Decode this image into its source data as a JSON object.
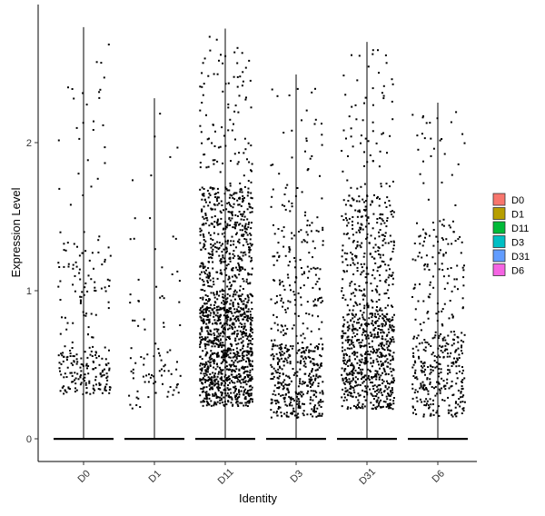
{
  "chart_data": {
    "type": "violin-scatter",
    "xlabel": "Identity",
    "ylabel": "Expression Level",
    "categories": [
      "D0",
      "D1",
      "D11",
      "D3",
      "D31",
      "D6"
    ],
    "ylim": [
      -0.08,
      2.8
    ],
    "yticks": [
      0,
      1,
      2
    ],
    "grid": false,
    "legend_position": "right",
    "legend": [
      {
        "label": "D0",
        "color": "#F8766D"
      },
      {
        "label": "D1",
        "color": "#B79F00"
      },
      {
        "label": "D11",
        "color": "#00BA38"
      },
      {
        "label": "D3",
        "color": "#00BFC4"
      },
      {
        "label": "D31",
        "color": "#619CFF"
      },
      {
        "label": "D6",
        "color": "#F564E3"
      }
    ],
    "series": [
      {
        "category": "D0",
        "max": 2.78,
        "n_points": 260,
        "low_mass": [
          0.3,
          0.6
        ],
        "zeros": true
      },
      {
        "category": "D1",
        "max": 2.3,
        "n_points": 95,
        "low_mass": [
          0.2,
          0.6
        ],
        "zeros": true
      },
      {
        "category": "D11",
        "max": 2.77,
        "n_points": 1500,
        "low_mass": [
          0.22,
          0.9
        ],
        "zeros": true
      },
      {
        "category": "D3",
        "max": 2.46,
        "n_points": 560,
        "low_mass": [
          0.14,
          0.65
        ],
        "zeros": true
      },
      {
        "category": "D31",
        "max": 2.68,
        "n_points": 950,
        "low_mass": [
          0.2,
          0.85
        ],
        "zeros": true
      },
      {
        "category": "D6",
        "max": 2.27,
        "n_points": 420,
        "low_mass": [
          0.15,
          0.7
        ],
        "zeros": true
      }
    ]
  }
}
